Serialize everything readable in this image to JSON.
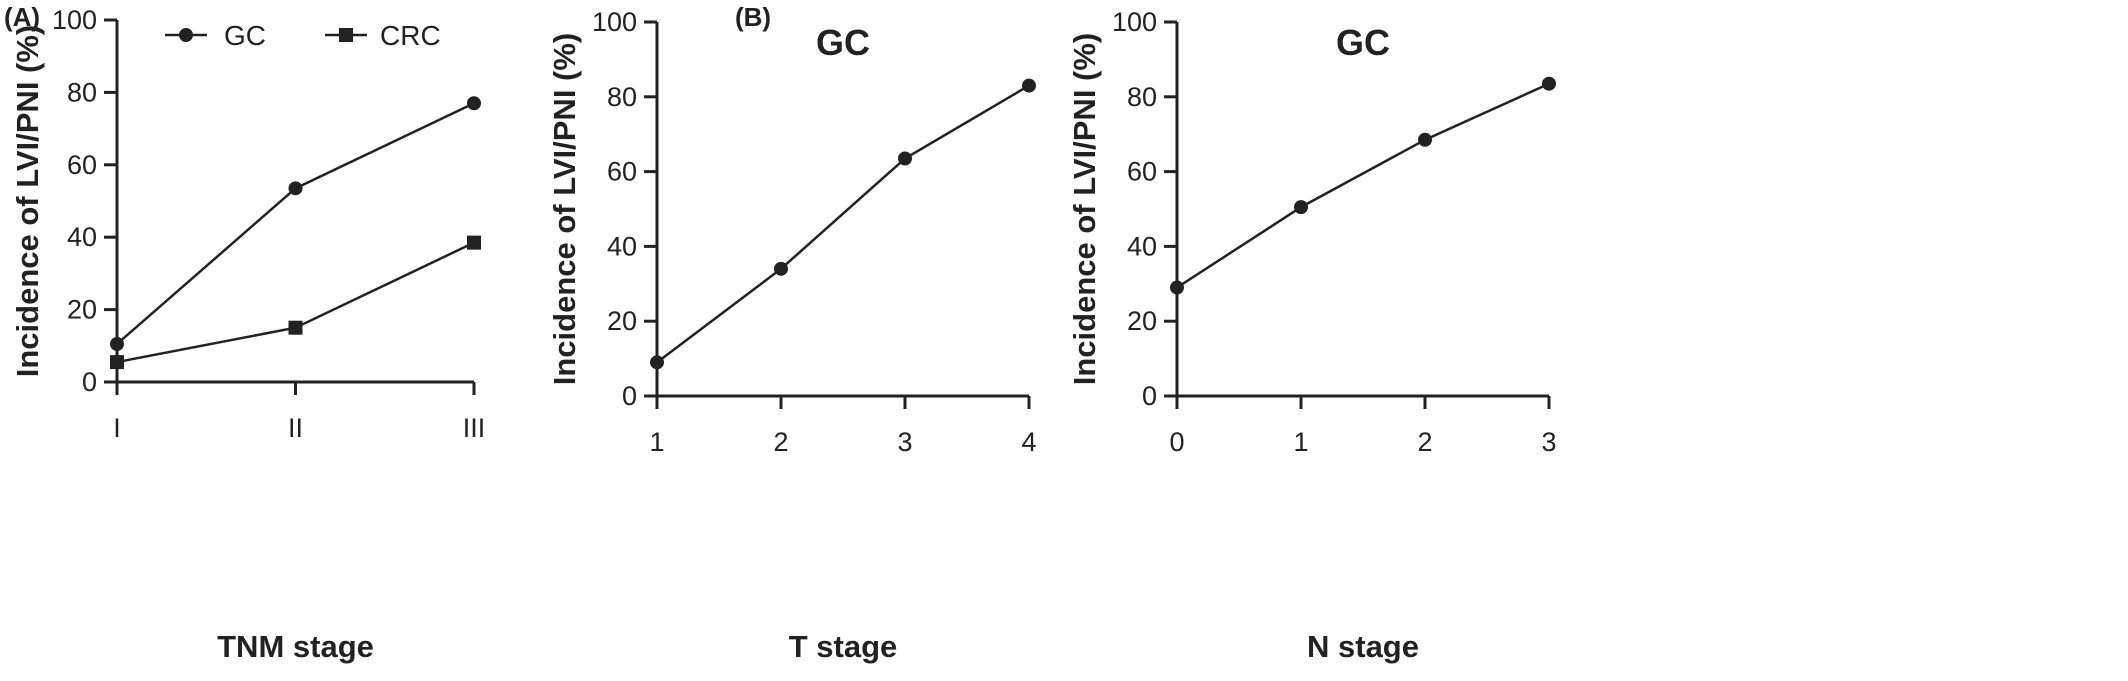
{
  "panel_labels": [
    "(A)",
    "(B)"
  ],
  "chart_data": [
    {
      "type": "line",
      "title": "",
      "xlabel": "TNM stage",
      "ylabel": "Incidence of LVI/PNI (%)",
      "categories": [
        "I",
        "II",
        "III"
      ],
      "ylim": [
        0,
        100
      ],
      "yticks": [
        "0",
        "20",
        "40",
        "60",
        "80",
        "100"
      ],
      "legend": "top",
      "series": [
        {
          "name": "GC",
          "marker": "circle",
          "values": [
            10.5,
            53.5,
            77
          ]
        },
        {
          "name": "CRC",
          "marker": "square",
          "values": [
            5.5,
            15,
            38.5
          ]
        }
      ]
    },
    {
      "type": "line",
      "title": "GC",
      "xlabel": "T stage",
      "ylabel": "Incidence of LVI/PNI (%)",
      "categories": [
        "1",
        "2",
        "3",
        "4"
      ],
      "ylim": [
        0,
        100
      ],
      "yticks": [
        "0",
        "20",
        "40",
        "60",
        "80",
        "100"
      ],
      "series": [
        {
          "marker": "circle",
          "values": [
            9,
            34,
            63.5,
            83
          ]
        }
      ]
    },
    {
      "type": "line",
      "title": "GC",
      "xlabel": "N stage",
      "ylabel": "Incidence of LVI/PNI (%)",
      "categories": [
        "0",
        "1",
        "2",
        "3"
      ],
      "ylim": [
        0,
        100
      ],
      "yticks": [
        "0",
        "20",
        "40",
        "60",
        "80",
        "100"
      ],
      "series": [
        {
          "marker": "circle",
          "values": [
            29,
            50.5,
            68.5,
            83.5
          ]
        }
      ]
    }
  ]
}
